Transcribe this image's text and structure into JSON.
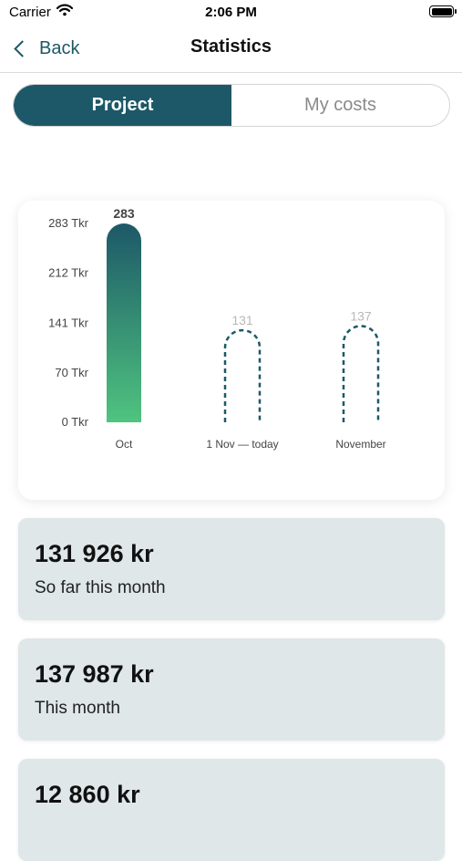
{
  "status_bar": {
    "carrier": "Carrier",
    "time": "2:06 PM"
  },
  "nav": {
    "back_label": "Back",
    "title": "Statistics"
  },
  "tabs": [
    {
      "label": "Project",
      "active": true
    },
    {
      "label": "My costs",
      "active": false
    }
  ],
  "colors": {
    "accent": "#1d5868",
    "bar_gradient_top": "#1d5868",
    "bar_gradient_bottom": "#4fc47f",
    "card_bg": "#dfe7e8"
  },
  "chart_data": {
    "type": "bar",
    "y_tick_labels": [
      "0 Tkr",
      "70 Tkr",
      "141 Tkr",
      "212 Tkr",
      "283 Tkr"
    ],
    "y_ticks": [
      0,
      70,
      141,
      212,
      283
    ],
    "ylim": [
      0,
      283
    ],
    "categories": [
      "Oct",
      "1 Nov  — today",
      "November"
    ],
    "values": [
      283,
      131,
      137
    ],
    "value_labels": [
      "283",
      "131",
      "137"
    ],
    "styles": [
      "solid",
      "dashed",
      "dashed"
    ],
    "grid": false
  },
  "stats": [
    {
      "amount": "131 926 kr",
      "label": "So far this month"
    },
    {
      "amount": "137 987 kr",
      "label": "This month"
    },
    {
      "amount": "12 860 kr",
      "label": ""
    }
  ]
}
